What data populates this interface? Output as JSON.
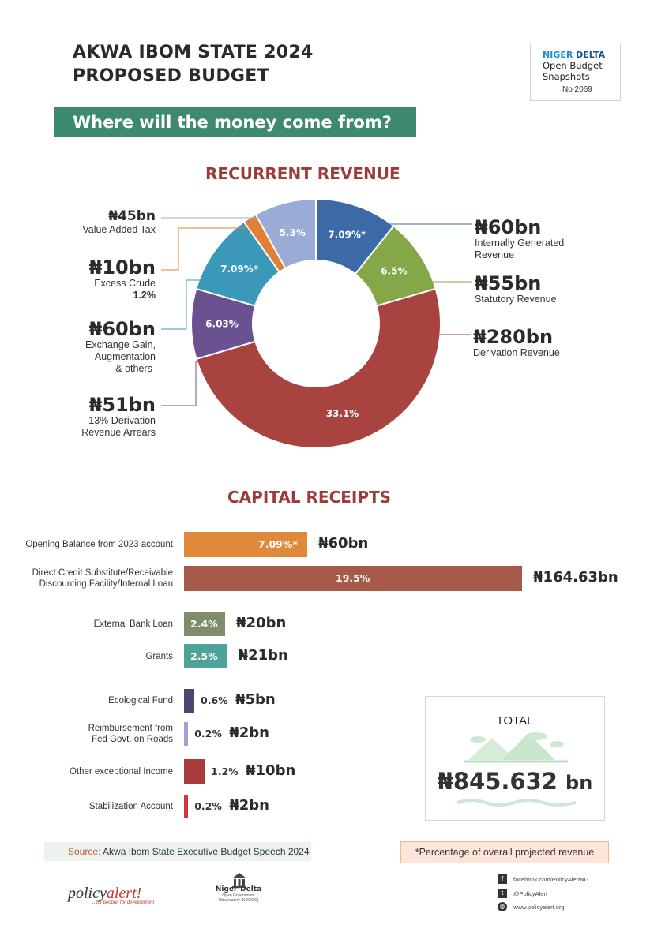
{
  "header": {
    "title_line1": "AKWA IBOM STATE 2024",
    "title_line2": "PROPOSED BUDGET",
    "banner": "Where will the money come from?"
  },
  "snapshot_logo": {
    "line1_a": "NIGER ",
    "line1_b": "DELTA",
    "line2": "Open Budget",
    "line3": "Snapshots",
    "number": "No 2069"
  },
  "colors": {
    "igr": "#3c6aa6",
    "statutory": "#86a748",
    "derivation": "#a8433f",
    "arrears": "#6a5190",
    "exchange": "#3a99b8",
    "excess": "#e07f37",
    "vat": "#9aabd6",
    "banner": "#3e8a6e",
    "section_title": "#9e3a38"
  },
  "chart_data": [
    {
      "type": "pie",
      "title": "RECURRENT REVENUE",
      "slices": [
        {
          "key": "igr",
          "amount": "₦60bn",
          "label_lines": [
            "Internally Generated",
            "Revenue"
          ],
          "pct_label": "7.09%*",
          "value": 60
        },
        {
          "key": "statutory",
          "amount": "₦55bn",
          "label_lines": [
            "Statutory Revenue"
          ],
          "pct_label": "6.5%",
          "value": 55
        },
        {
          "key": "derivation",
          "amount": "₦280bn",
          "label_lines": [
            "Derivation Revenue"
          ],
          "pct_label": "33.1%",
          "value": 280
        },
        {
          "key": "arrears",
          "amount": "₦51bn",
          "label_lines": [
            "13% Derivation",
            "Revenue Arrears"
          ],
          "pct_label": "6.03%",
          "value": 51
        },
        {
          "key": "exchange",
          "amount": "₦60bn",
          "label_lines": [
            "Exchange Gain,",
            "Augmentation",
            "& others-"
          ],
          "pct_label": "7.09%*",
          "value": 60
        },
        {
          "key": "excess",
          "amount": "₦10bn",
          "label_lines": [
            "Excess Crude"
          ],
          "pct_label": "1.2%",
          "value": 10
        },
        {
          "key": "vat",
          "amount": "₦45bn",
          "label_lines": [
            "Value Added Tax"
          ],
          "pct_label": "5.3%",
          "value": 45
        }
      ]
    },
    {
      "type": "bar",
      "orientation": "horizontal",
      "title": "CAPITAL RECEIPTS",
      "bars": [
        {
          "label": "Opening Balance from 2023 account",
          "pct_label": "7.09%*",
          "amount": "₦60bn",
          "value": 60,
          "color": "#e0893b"
        },
        {
          "label": "Direct Credit Substitute/Receivable\nDiscounting Facility/Internal Loan",
          "pct_label": "19.5%",
          "amount": "₦164.63bn",
          "value": 164.63,
          "color": "#a55a4a"
        },
        {
          "label": "External Bank Loan",
          "pct_label": "2.4%",
          "amount": "₦20bn",
          "value": 20,
          "color": "#7d8d6c"
        },
        {
          "label": "Grants",
          "pct_label": "2.5%",
          "amount": "₦21bn",
          "value": 21,
          "color": "#4ea398"
        },
        {
          "label": "Ecological Fund",
          "pct_label": "0.6%",
          "amount": "₦5bn",
          "value": 5,
          "color": "#4b4770"
        },
        {
          "label": "Reimbursement from\nFed Govt. on Roads",
          "pct_label": "0.2%",
          "amount": "₦2bn",
          "value": 2,
          "color": "#a79fd4"
        },
        {
          "label": "Other exceptional Income",
          "pct_label": "1.2%",
          "amount": "₦10bn",
          "value": 10,
          "color": "#a83b3b"
        },
        {
          "label": "Stabilization Account",
          "pct_label": "0.2%",
          "amount": "₦2bn",
          "value": 2,
          "color": "#d9323a"
        }
      ]
    }
  ],
  "total": {
    "label": "TOTAL",
    "value": "₦845.632",
    "unit": "bn"
  },
  "footer": {
    "source_key": "Source:",
    "source_text": " Akwa Ibom State Executive Budget Speech 2024",
    "note": "*Percentage of overall projected revenue",
    "policy_logo_a": "policy",
    "policy_logo_b": "alert!",
    "policy_tag": "...for people, for development",
    "nd_title": "Niger-Delta",
    "nd_sub": "Open Government Observatory (NDOGO)",
    "facebook": "facebook.com/PolicyAlertNG",
    "twitter": "@PolicyAlert",
    "web": "www.policyalert.org"
  }
}
